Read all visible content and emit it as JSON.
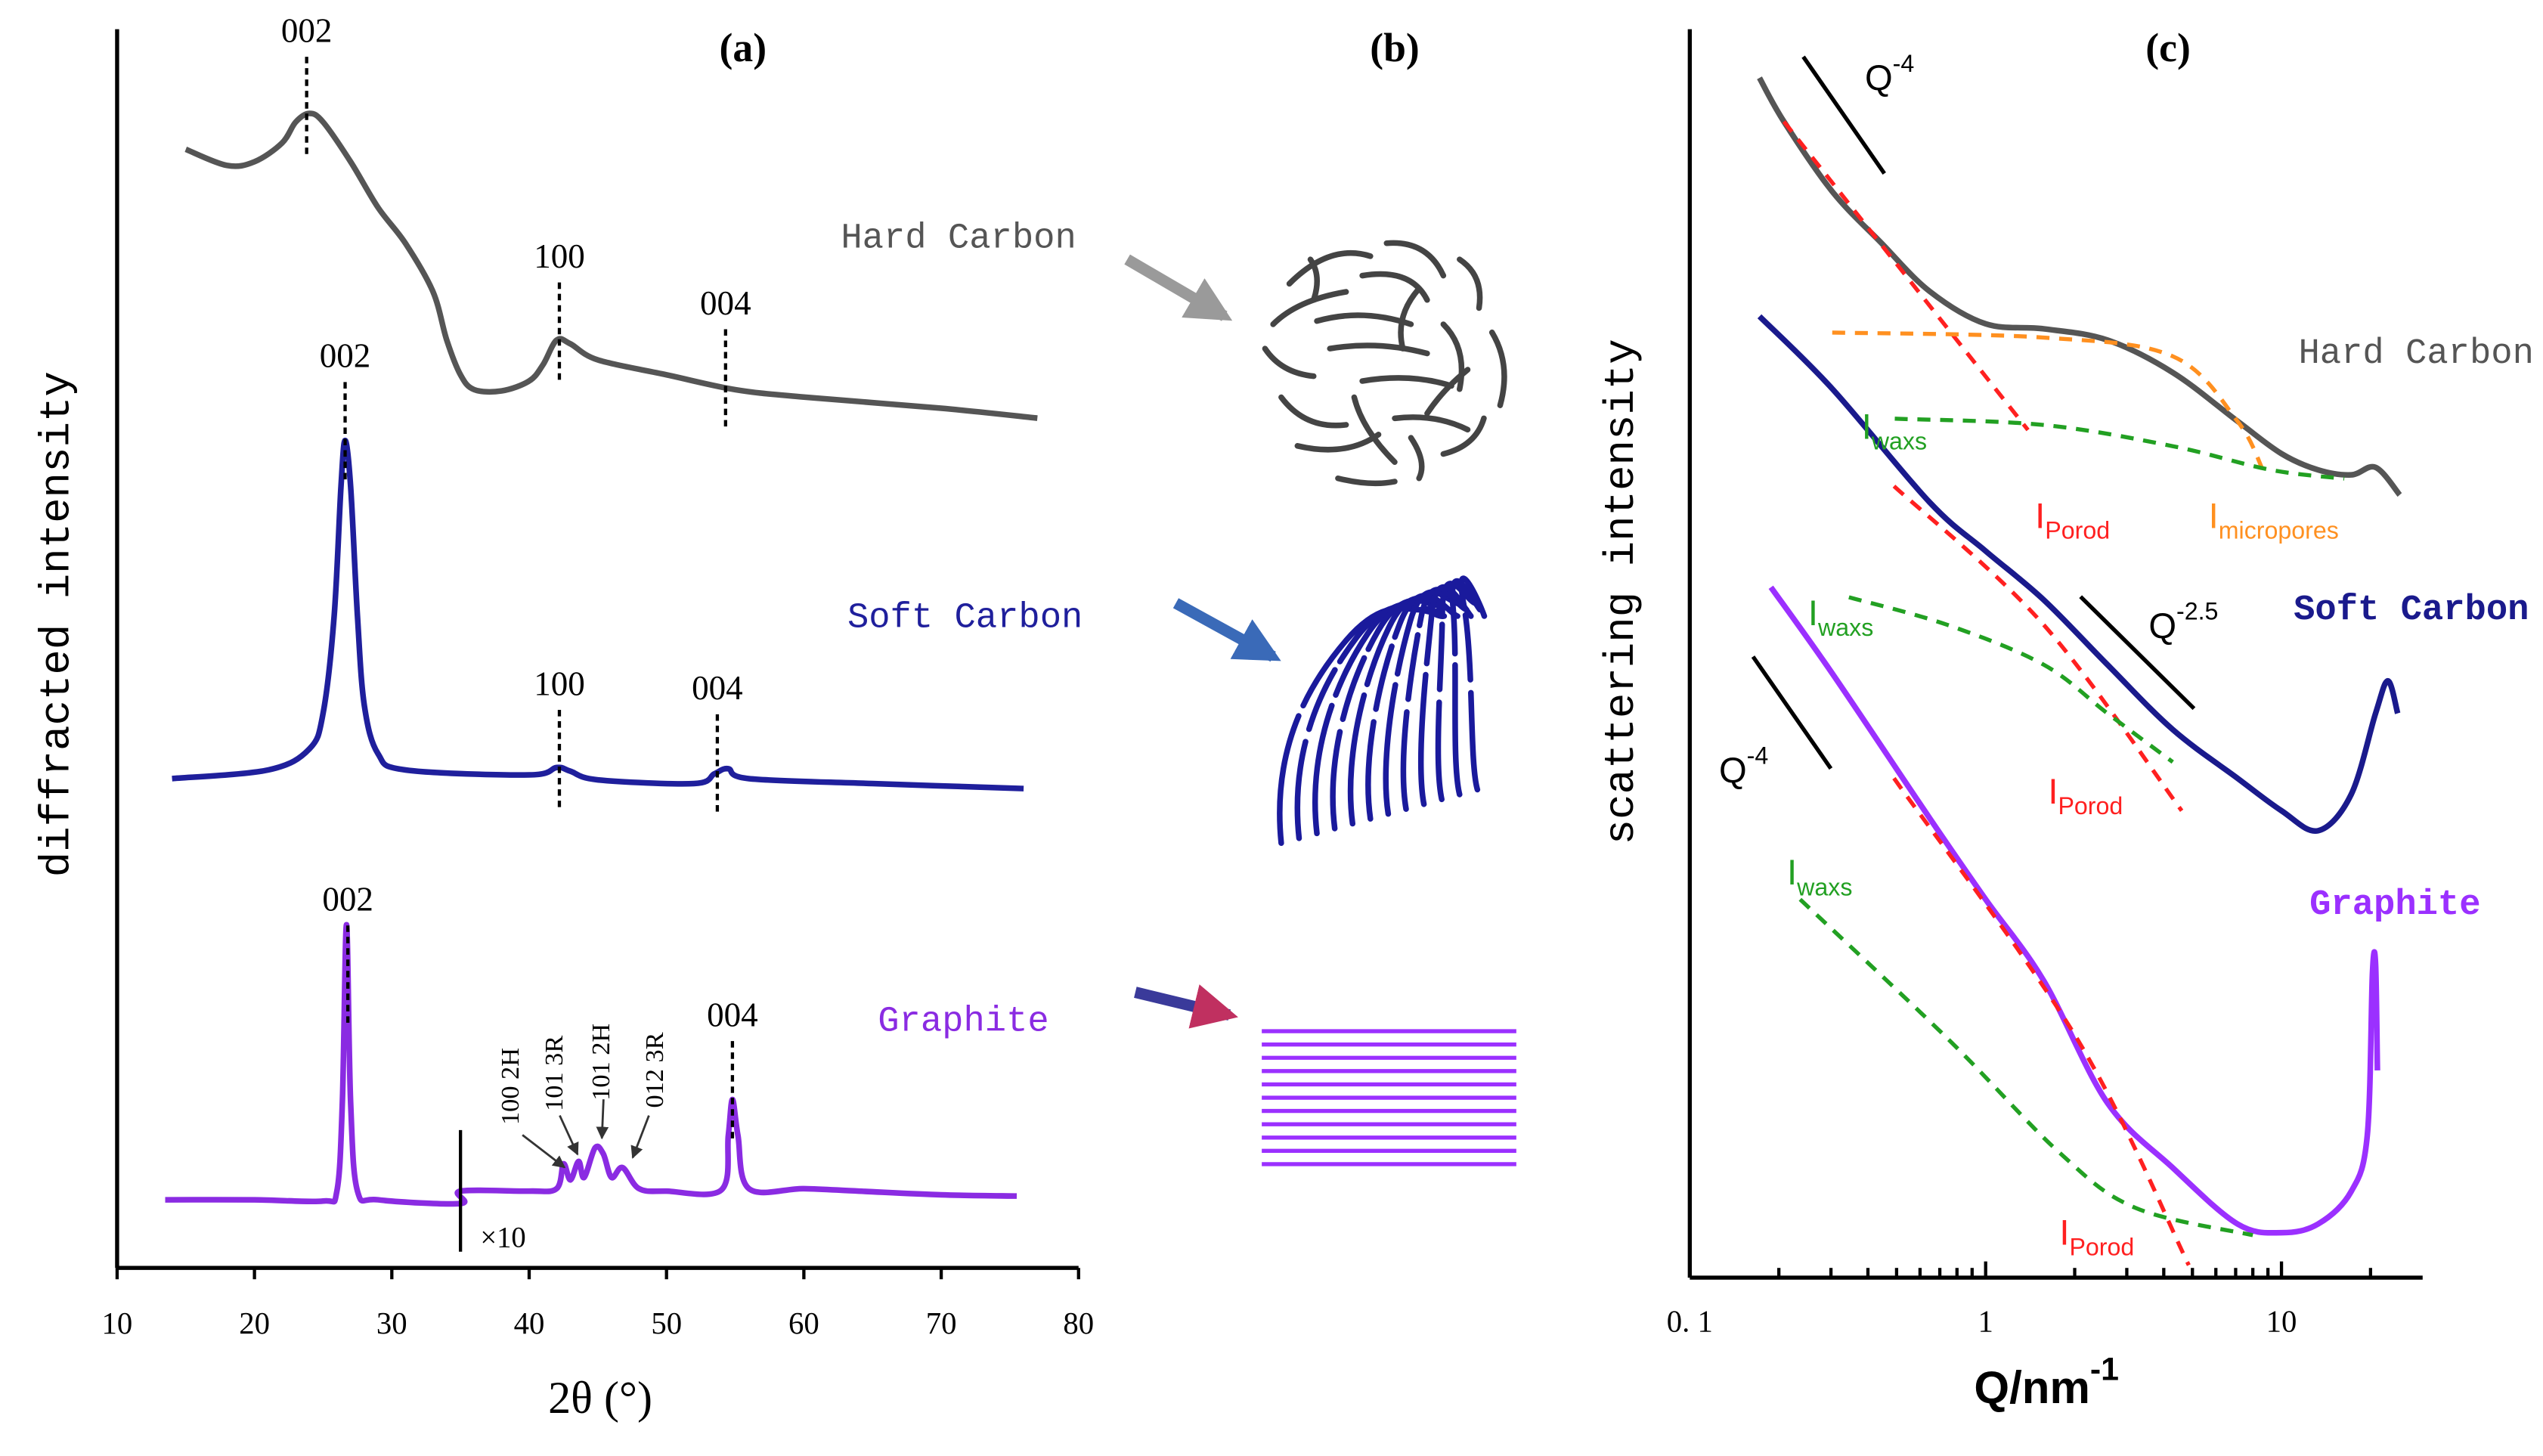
{
  "chart_data": [
    {
      "type": "line",
      "title": "(a)",
      "x_label": "2θ (°)",
      "y_label": "diffracted intensity",
      "xlim": [
        10,
        80
      ],
      "xticks": [
        10,
        20,
        30,
        40,
        50,
        60,
        70,
        80
      ],
      "ylim": [
        0,
        100
      ],
      "x10_label": "×10",
      "phase_labels": [
        "100 2H",
        "101 3R",
        "101 2H",
        "012 3R"
      ],
      "series": [
        {
          "name": "Hard Carbon",
          "color": "#555555",
          "x": [
            15,
            18,
            20,
            22,
            23,
            24,
            25,
            27,
            29,
            31,
            33,
            34,
            35,
            36,
            38,
            40,
            41,
            42,
            43,
            45,
            50,
            55,
            60,
            70,
            77
          ],
          "values": [
            90.3,
            89.0,
            89.3,
            90.8,
            92.5,
            93.2,
            92.5,
            89.3,
            85.6,
            82.7,
            78.8,
            74.9,
            72.1,
            70.9,
            70.8,
            71.6,
            72.9,
            74.9,
            74.6,
            73.3,
            72.1,
            70.9,
            70.3,
            69.4,
            68.6
          ],
          "peaks": [
            {
              "label": "002",
              "x": 23.8
            },
            {
              "label": "100",
              "x": 42.2
            },
            {
              "label": "004",
              "x": 54.3
            }
          ]
        },
        {
          "name": "Soft Carbon",
          "color": "#1f1f9c",
          "x": [
            14,
            21,
            24,
            25,
            25.8,
            26.3,
            26.6,
            27,
            27.5,
            28,
            29,
            31,
            40,
            42,
            43,
            45,
            52,
            53.5,
            54.5,
            56,
            65,
            76
          ],
          "values": [
            39.5,
            40.2,
            41.9,
            44.8,
            52.6,
            63.1,
            66.8,
            63.1,
            52.6,
            45.4,
            41.5,
            40.2,
            39.8,
            40.4,
            40.1,
            39.4,
            39.1,
            39.9,
            40.3,
            39.5,
            39.1,
            38.7
          ],
          "peaks": [
            {
              "label": "002",
              "x": 26.6
            },
            {
              "label": "100",
              "x": 42.2
            },
            {
              "label": "004",
              "x": 53.7
            }
          ]
        },
        {
          "name": "Graphite",
          "color": "#8a2be2",
          "x": [
            13.5,
            20,
            25,
            26,
            26.4,
            26.7,
            27,
            27.5,
            29,
            35,
            35,
            40,
            42,
            42.5,
            43,
            43.6,
            44,
            44.8,
            45.4,
            46,
            46.8,
            48,
            50,
            54,
            54.5,
            54.8,
            55.2,
            56,
            60,
            64,
            70,
            75.5
          ],
          "values": [
            5.5,
            5.5,
            5.4,
            6.2,
            13.4,
            27.7,
            13.4,
            6.2,
            5.5,
            5.2,
            6.2,
            6.2,
            6.4,
            8.4,
            7.1,
            8.6,
            7.3,
            9.7,
            9.2,
            7.3,
            8.1,
            6.4,
            6.2,
            6.3,
            10.7,
            13.6,
            10.7,
            6.4,
            6.4,
            6.2,
            5.9,
            5.8
          ],
          "peaks": [
            {
              "label": "002",
              "x": 26.8
            },
            {
              "label": "004",
              "x": 54.8
            }
          ]
        }
      ]
    },
    {
      "type": "line",
      "title": "(c)",
      "x_label": "Q/nm",
      "x_label_sup": "-1",
      "y_label": "scattering intensity",
      "xscale": "log",
      "xlim": [
        0.1,
        30
      ],
      "ylim": [
        0,
        100
      ],
      "xticks": [
        {
          "value": 0.1,
          "label": "0. 1"
        },
        1,
        10
      ],
      "xminorticks": [
        0.2,
        0.3,
        0.4,
        0.5,
        0.6,
        0.7,
        0.8,
        0.9,
        2,
        3,
        4,
        5,
        6,
        7,
        8,
        9,
        20
      ],
      "series": [
        {
          "name": "Hard Carbon",
          "color": "#555555",
          "x": [
            0.172,
            0.208,
            0.303,
            0.443,
            0.647,
            1.0,
            1.57,
            2.58,
            4.29,
            7.1,
            10,
            13.3,
            17.2,
            20.8,
            25.1
          ],
          "values": [
            96.1,
            92.6,
            87.0,
            82.9,
            79.0,
            76.4,
            76.0,
            75.1,
            72.5,
            68.6,
            66.0,
            64.7,
            64.3,
            64.9,
            62.7
          ]
        },
        {
          "name": "Soft Carbon",
          "color": "#1a1a8c",
          "x": [
            0.172,
            0.303,
            0.647,
            1.0,
            1.57,
            2.58,
            4.29,
            7.1,
            10,
            13.3,
            17.2,
            20.8,
            22.9,
            24.7
          ],
          "values": [
            77.0,
            71.2,
            62.1,
            58.2,
            54.3,
            49.1,
            43.9,
            40.0,
            37.4,
            35.8,
            38.7,
            45.2,
            47.8,
            45.2
          ]
        },
        {
          "name": "Graphite",
          "color": "#9b30ff",
          "x": [
            0.188,
            0.303,
            0.647,
            1.0,
            1.57,
            2.58,
            4.29,
            7.1,
            10,
            13.3,
            17.2,
            19.5,
            20.3,
            20.8,
            21.1
          ],
          "values": [
            55.3,
            48.4,
            36.8,
            30.3,
            23.8,
            14.0,
            8.8,
            4.3,
            3.6,
            4.3,
            6.9,
            11.4,
            24.4,
            25.1,
            16.6
          ]
        },
        {
          "color": "#ff2020",
          "dash": true,
          "x": [
            0.208,
            1.39
          ],
          "values": [
            92.6,
            67.9
          ]
        },
        {
          "color": "#ff9020",
          "dash": true,
          "x": [
            0.303,
            1.57,
            4.29,
            7.1,
            8.65
          ],
          "values": [
            75.7,
            75.3,
            73.8,
            68.6,
            64.7
          ]
        },
        {
          "color": "#22a022",
          "dash": true,
          "x": [
            0.493,
            1.57,
            4.29,
            9.2,
            16.3
          ],
          "values": [
            68.8,
            68.3,
            66.6,
            64.7,
            64.0
          ]
        },
        {
          "color": "#ff2020",
          "dash": true,
          "x": [
            0.49,
            1.57,
            4.6
          ],
          "values": [
            63.4,
            52.3,
            37.4
          ]
        },
        {
          "color": "#22a022",
          "dash": true,
          "x": [
            0.345,
            0.74,
            1.57,
            2.58,
            4.29
          ],
          "values": [
            54.5,
            52.3,
            49.1,
            45.2,
            41.3
          ]
        },
        {
          "color": "#ff2020",
          "dash": true,
          "x": [
            0.49,
            2.03,
            4.86
          ],
          "values": [
            40.0,
            19.2,
            1.0
          ]
        },
        {
          "color": "#22a022",
          "dash": true,
          "x": [
            0.236,
            0.74,
            1.76,
            3.2,
            8.0
          ],
          "values": [
            30.3,
            19.2,
            10.1,
            5.6,
            3.4
          ]
        }
      ],
      "annotations": [
        {
          "text": "Q",
          "sup": "-4",
          "color": "#000000"
        },
        {
          "text": "Q",
          "sup": "-2.5",
          "color": "#000000"
        },
        {
          "text": "Q",
          "sup": "-4",
          "color": "#000000"
        },
        {
          "text": "I",
          "sub": "waxs",
          "color": "#22a022"
        },
        {
          "text": "I",
          "sub": "waxs",
          "color": "#22a022"
        },
        {
          "text": "I",
          "sub": "waxs",
          "color": "#22a022"
        },
        {
          "text": "I",
          "sub": "Porod",
          "color": "#ff2020"
        },
        {
          "text": "I",
          "sub": "Porod",
          "color": "#ff2020"
        },
        {
          "text": "I",
          "sub": "Porod",
          "color": "#ff2020"
        },
        {
          "text": "I",
          "sub": "micropores",
          "color": "#ff9020"
        }
      ]
    }
  ],
  "panel_b": {
    "title": "(b)"
  }
}
